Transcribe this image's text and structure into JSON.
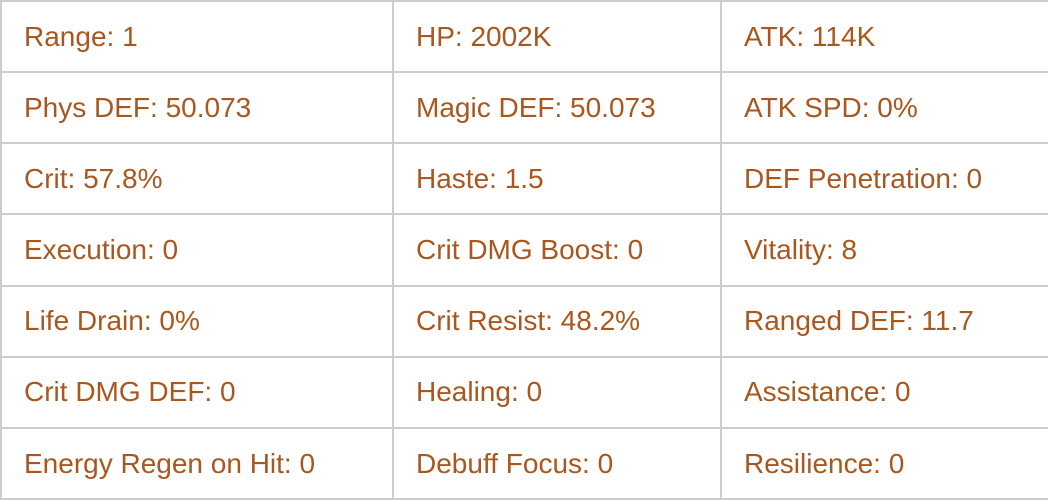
{
  "colors": {
    "text": "#a9571e",
    "border": "#cdcdcd",
    "background": "#ffffff"
  },
  "stats_table": {
    "rows": [
      {
        "cells": [
          "Range: 1",
          "HP: 2002K",
          "ATK: 114K"
        ]
      },
      {
        "cells": [
          "Phys DEF: 50.073",
          "Magic DEF: 50.073",
          "ATK SPD: 0%"
        ]
      },
      {
        "cells": [
          "Crit: 57.8%",
          "Haste: 1.5",
          "DEF Penetration: 0"
        ]
      },
      {
        "cells": [
          "Execution: 0",
          "Crit DMG Boost: 0",
          "Vitality: 8"
        ]
      },
      {
        "cells": [
          "Life Drain: 0%",
          "Crit Resist: 48.2%",
          "Ranged DEF: 11.7"
        ]
      },
      {
        "cells": [
          "Crit DMG DEF: 0",
          "Healing: 0",
          "Assistance: 0"
        ]
      },
      {
        "cells": [
          "Energy Regen on Hit: 0",
          "Debuff Focus: 0",
          "Resilience: 0"
        ]
      }
    ],
    "stats": {
      "range": "1",
      "hp": "2002K",
      "atk": "114K",
      "phys_def": "50.073",
      "magic_def": "50.073",
      "atk_spd": "0%",
      "crit": "57.8%",
      "haste": "1.5",
      "def_penetration": "0",
      "execution": "0",
      "crit_dmg_boost": "0",
      "vitality": "8",
      "life_drain": "0%",
      "crit_resist": "48.2%",
      "ranged_def": "11.7",
      "crit_dmg_def": "0",
      "healing": "0",
      "assistance": "0",
      "energy_regen_on_hit": "0",
      "debuff_focus": "0",
      "resilience": "0"
    }
  }
}
